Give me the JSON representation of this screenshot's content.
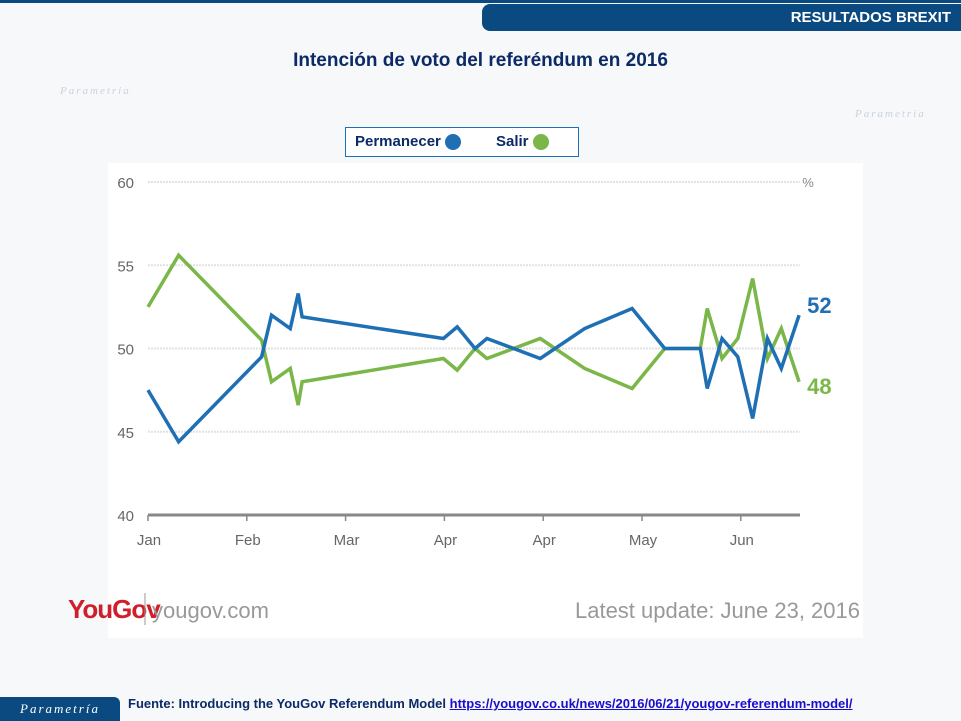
{
  "header": {
    "banner": "RESULTADOS BREXIT",
    "title": "Intención de voto del referéndum en 2016"
  },
  "legend": {
    "items": [
      {
        "label": "Permanecer",
        "color": "#1f6fb5"
      },
      {
        "label": "Salir",
        "color": "#7ab648"
      }
    ]
  },
  "chart_data": {
    "type": "line",
    "title": "",
    "xlabel": "",
    "ylabel": "%",
    "x_ticks": [
      "Jan",
      "Feb",
      "Mar",
      "Apr",
      "Apr",
      "May",
      "Jun"
    ],
    "ylim": [
      40,
      60
    ],
    "y_ticks": [
      40,
      45,
      50,
      55,
      60
    ],
    "grid": true,
    "x": [
      0,
      0.31,
      1.15,
      1.25,
      1.44,
      1.52,
      1.56,
      2.99,
      3.13,
      3.31,
      3.43,
      3.97,
      4.42,
      4.9,
      5.23,
      5.59,
      5.66,
      5.81,
      5.97,
      6.12,
      6.27,
      6.41,
      6.59
    ],
    "series": [
      {
        "name": "Permanecer",
        "color": "#1f6fb5",
        "end_label": "52",
        "values": [
          47.5,
          44.4,
          49.5,
          52,
          51.2,
          53.3,
          51.9,
          50.6,
          51.3,
          50,
          50.6,
          49.4,
          51.2,
          52.4,
          50,
          50,
          47.6,
          50.6,
          49.5,
          45.8,
          50.6,
          48.8,
          52
        ]
      },
      {
        "name": "Salir",
        "color": "#7ab648",
        "end_label": "48",
        "values": [
          52.5,
          55.6,
          50.5,
          48,
          48.8,
          46.6,
          48,
          49.4,
          48.7,
          50,
          49.4,
          50.6,
          48.8,
          47.6,
          50,
          50,
          52.4,
          49.4,
          50.6,
          54.2,
          49.4,
          51.2,
          48
        ]
      }
    ]
  },
  "branding": {
    "yougov": "YouGov",
    "site": "yougov.com",
    "update": "Latest update: June  23, 2016"
  },
  "footer": {
    "source": "Fuente: Introducing the YouGov Referendum Model",
    "link": "https://yougov.co.uk/news/2016/06/21/yougov-referendum-model/"
  },
  "logo": "Parametría"
}
